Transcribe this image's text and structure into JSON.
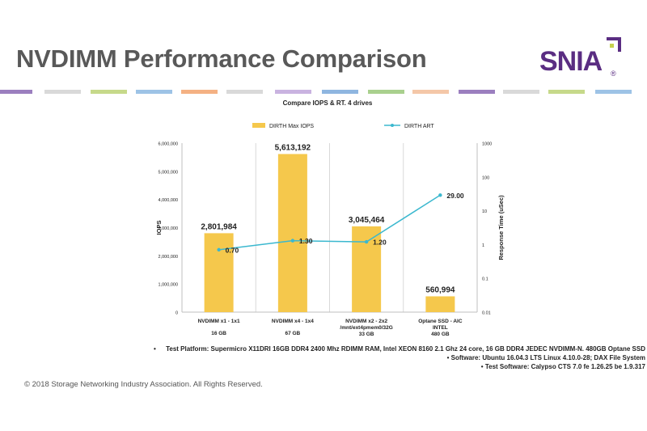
{
  "slide": {
    "title": "NVDIMM Performance Comparison",
    "copyright": "© 2018 Storage Networking Industry Association. All Rights Reserved."
  },
  "logo": {
    "text": "SNIA",
    "registered": "®",
    "color": "#5a2d82"
  },
  "stripe_colors": [
    "#9b7fbf",
    "#d9d9d9",
    "#c6d98a",
    "#9dc3e6",
    "#f4b183",
    "#d9d9d9",
    "#c9b3e0",
    "#8fb6e0",
    "#a9d08e",
    "#f4c7a8"
  ],
  "chart_data": {
    "type": "bar",
    "title": "Compare IOPS & RT. 4 drives",
    "categories": [
      "NVDIMM x1 - 1x1",
      "NVDIMM x4 - 1x4",
      "NVDIMM x2 - 2x2",
      "Optane SSD - AIC"
    ],
    "category_sublabels": [
      "",
      "",
      "/mnt/ext4pmem0/32G",
      "INTEL"
    ],
    "capacities": [
      "16 GB",
      "67 GB",
      "33 GB",
      "480 GB"
    ],
    "series": [
      {
        "name": "DIRTH Max IOPS",
        "type": "bar",
        "axis": "left",
        "color": "#f5c84c",
        "values": [
          2801984,
          5613192,
          3045464,
          560994
        ],
        "labels": [
          "2,801,984",
          "5,613,192",
          "3,045,464",
          "560,994"
        ]
      },
      {
        "name": "DIRTH ART",
        "type": "line",
        "axis": "right",
        "color": "#3bb8cf",
        "values": [
          0.7,
          1.3,
          1.2,
          29.0
        ],
        "labels": [
          "0.70",
          "1.30",
          "1.20",
          "29.00"
        ]
      }
    ],
    "ylabel": "IOPS",
    "ylim": [
      0,
      6000000
    ],
    "yticks": [
      "0",
      "1,000,000",
      "2,000,000",
      "3,000,000",
      "4,000,000",
      "5,000,000",
      "6,000,000"
    ],
    "y2label": "Response Time (uSec)",
    "y2scale": "log",
    "y2lim": [
      0.01,
      1000
    ],
    "y2ticks": [
      "0.01",
      "0.1",
      "1",
      "10",
      "100",
      "1000"
    ],
    "grid": false,
    "legend": "top"
  },
  "notes": [
    "Test Platform:  Supermicro X11DRI 16GB DDR4 2400 Mhz RDIMM RAM, Intel XEON 8160 2.1 Ghz 24 core, 16 GB DDR4 JEDEC NVDIMM-N. 480GB Optane SSD",
    "Software:  Ubuntu 16.04.3 LTS Linux 4.10.0-28; DAX File System",
    "Test Software:  Calypso CTS 7.0 fe 1.26.25 be 1.9.317"
  ]
}
